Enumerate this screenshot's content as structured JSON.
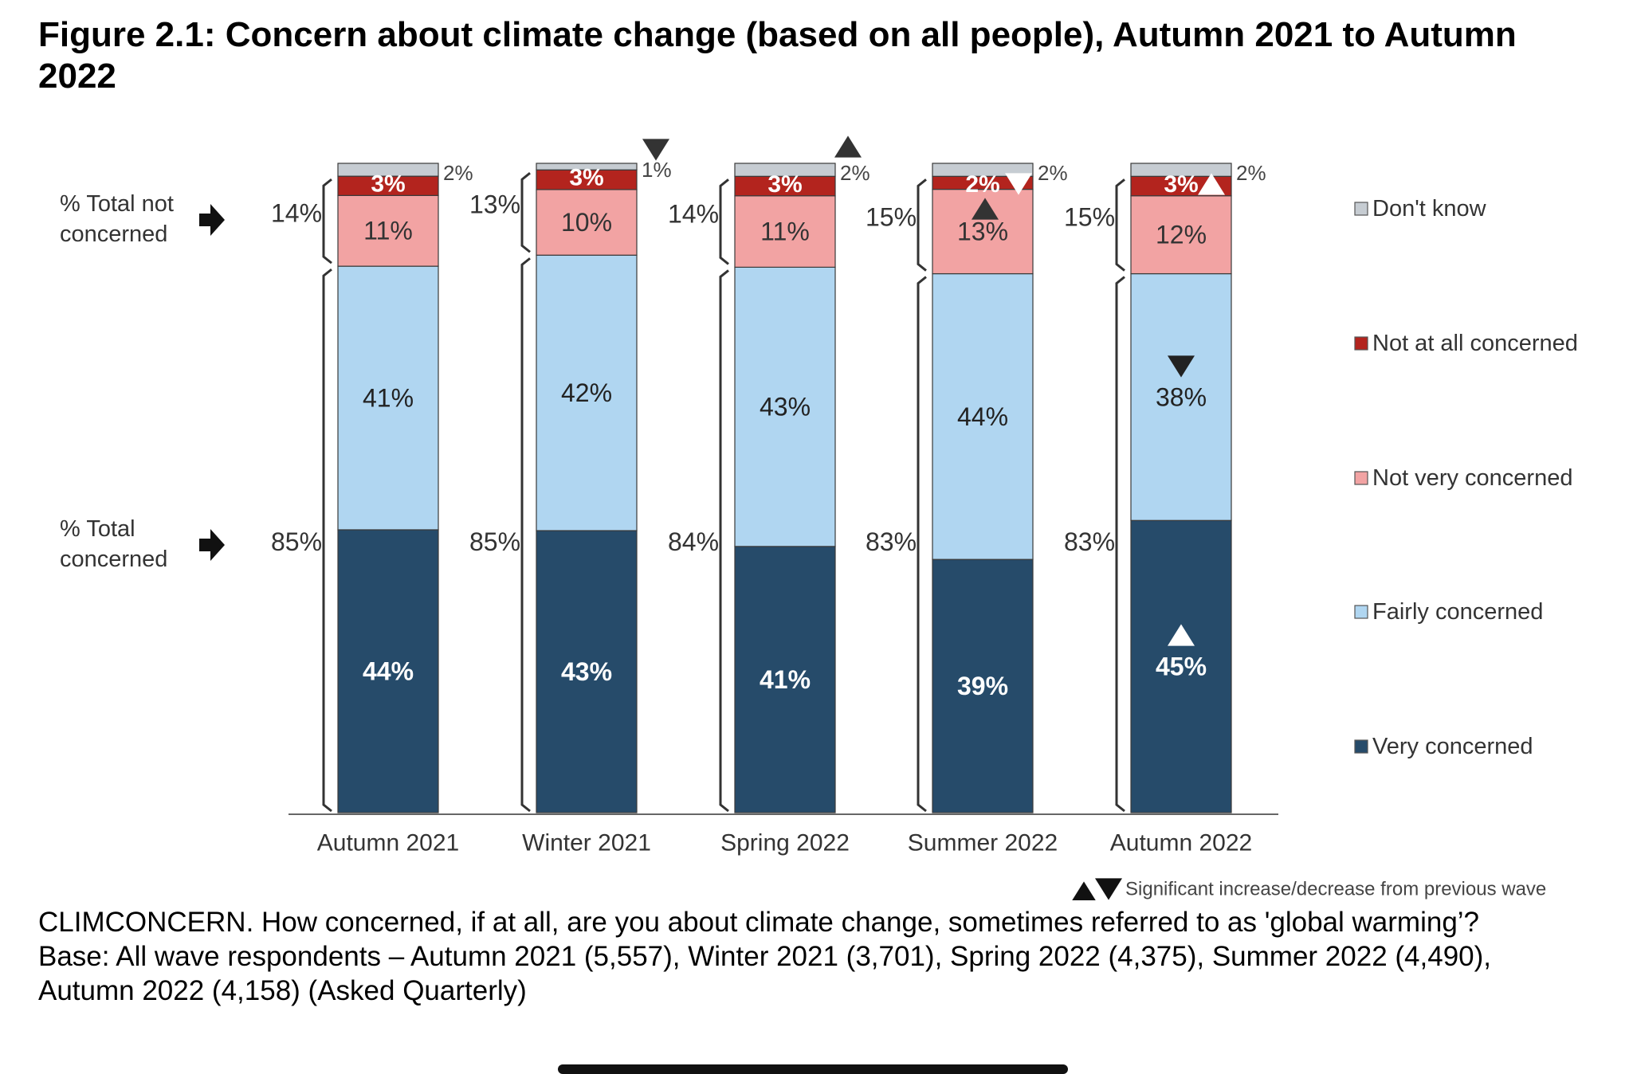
{
  "title": "Figure 2.1: Concern about climate change (based on all people), Autumn 2021 to Autumn 2022",
  "caption": {
    "question": "CLIMCONCERN. How concerned, if at all, are you about climate change, sometimes referred to as 'global warming’?",
    "base": "Base: All wave respondents – Autumn 2021 (5,557), Winter 2021 (3,701), Spring 2022 (4,375), Summer 2022 (4,490), Autumn 2022 (4,158) (Asked Quarterly)"
  },
  "chart_data": {
    "type": "bar",
    "stacked": true,
    "categories": [
      "Autumn 2021",
      "Winter 2021",
      "Spring 2022",
      "Summer 2022",
      "Autumn 2022"
    ],
    "series": [
      {
        "name": "Very concerned",
        "color": "#264b6a",
        "values": [
          44,
          43,
          41,
          39,
          45
        ],
        "labels": [
          "44%",
          "43%",
          "41%",
          "39%",
          "45%"
        ]
      },
      {
        "name": "Fairly concerned",
        "color": "#b0d6f1",
        "values": [
          41,
          42,
          43,
          44,
          38
        ],
        "labels": [
          "41%",
          "42%",
          "43%",
          "44%",
          "38%"
        ]
      },
      {
        "name": "Not very concerned",
        "color": "#f2a3a3",
        "values": [
          11,
          10,
          11,
          13,
          12
        ],
        "labels": [
          "11%",
          "10%",
          "11%",
          "13%",
          "12%"
        ]
      },
      {
        "name": "Not at all concerned",
        "color": "#b3241e",
        "values": [
          3,
          3,
          3,
          2,
          3
        ],
        "labels": [
          "3%",
          "3%",
          "3%",
          "2%",
          "3%"
        ]
      },
      {
        "name": "Don't know",
        "color": "#c6ccd2",
        "values": [
          2,
          1,
          2,
          2,
          2
        ],
        "labels": [
          "2%",
          "1%",
          "2%",
          "2%",
          "2%"
        ]
      }
    ],
    "totals": {
      "not_concerned_label": "% Total not concerned",
      "concerned_label": "% Total concerned",
      "not_concerned": [
        "14%",
        "13%",
        "14%",
        "15%",
        "15%"
      ],
      "concerned": [
        "85%",
        "85%",
        "84%",
        "83%",
        "83%"
      ]
    },
    "significance_markers": [
      {
        "category": "Winter 2021",
        "series": "Don't know",
        "direction": "decrease"
      },
      {
        "category": "Spring 2022",
        "series": "Don't know",
        "direction": "increase"
      },
      {
        "category": "Summer 2022",
        "series": "Not at all concerned",
        "direction": "decrease"
      },
      {
        "category": "Summer 2022",
        "series": "Not very concerned",
        "direction": "increase"
      },
      {
        "category": "Autumn 2022",
        "series": "Not at all concerned",
        "direction": "increase"
      },
      {
        "category": "Autumn 2022",
        "series": "Fairly concerned",
        "direction": "decrease"
      },
      {
        "category": "Autumn 2022",
        "series": "Very concerned",
        "direction": "increase"
      }
    ],
    "significance_note": "Significant increase/decrease from previous wave",
    "ylim": [
      0,
      100
    ],
    "legend_position": "right",
    "grid": false
  }
}
